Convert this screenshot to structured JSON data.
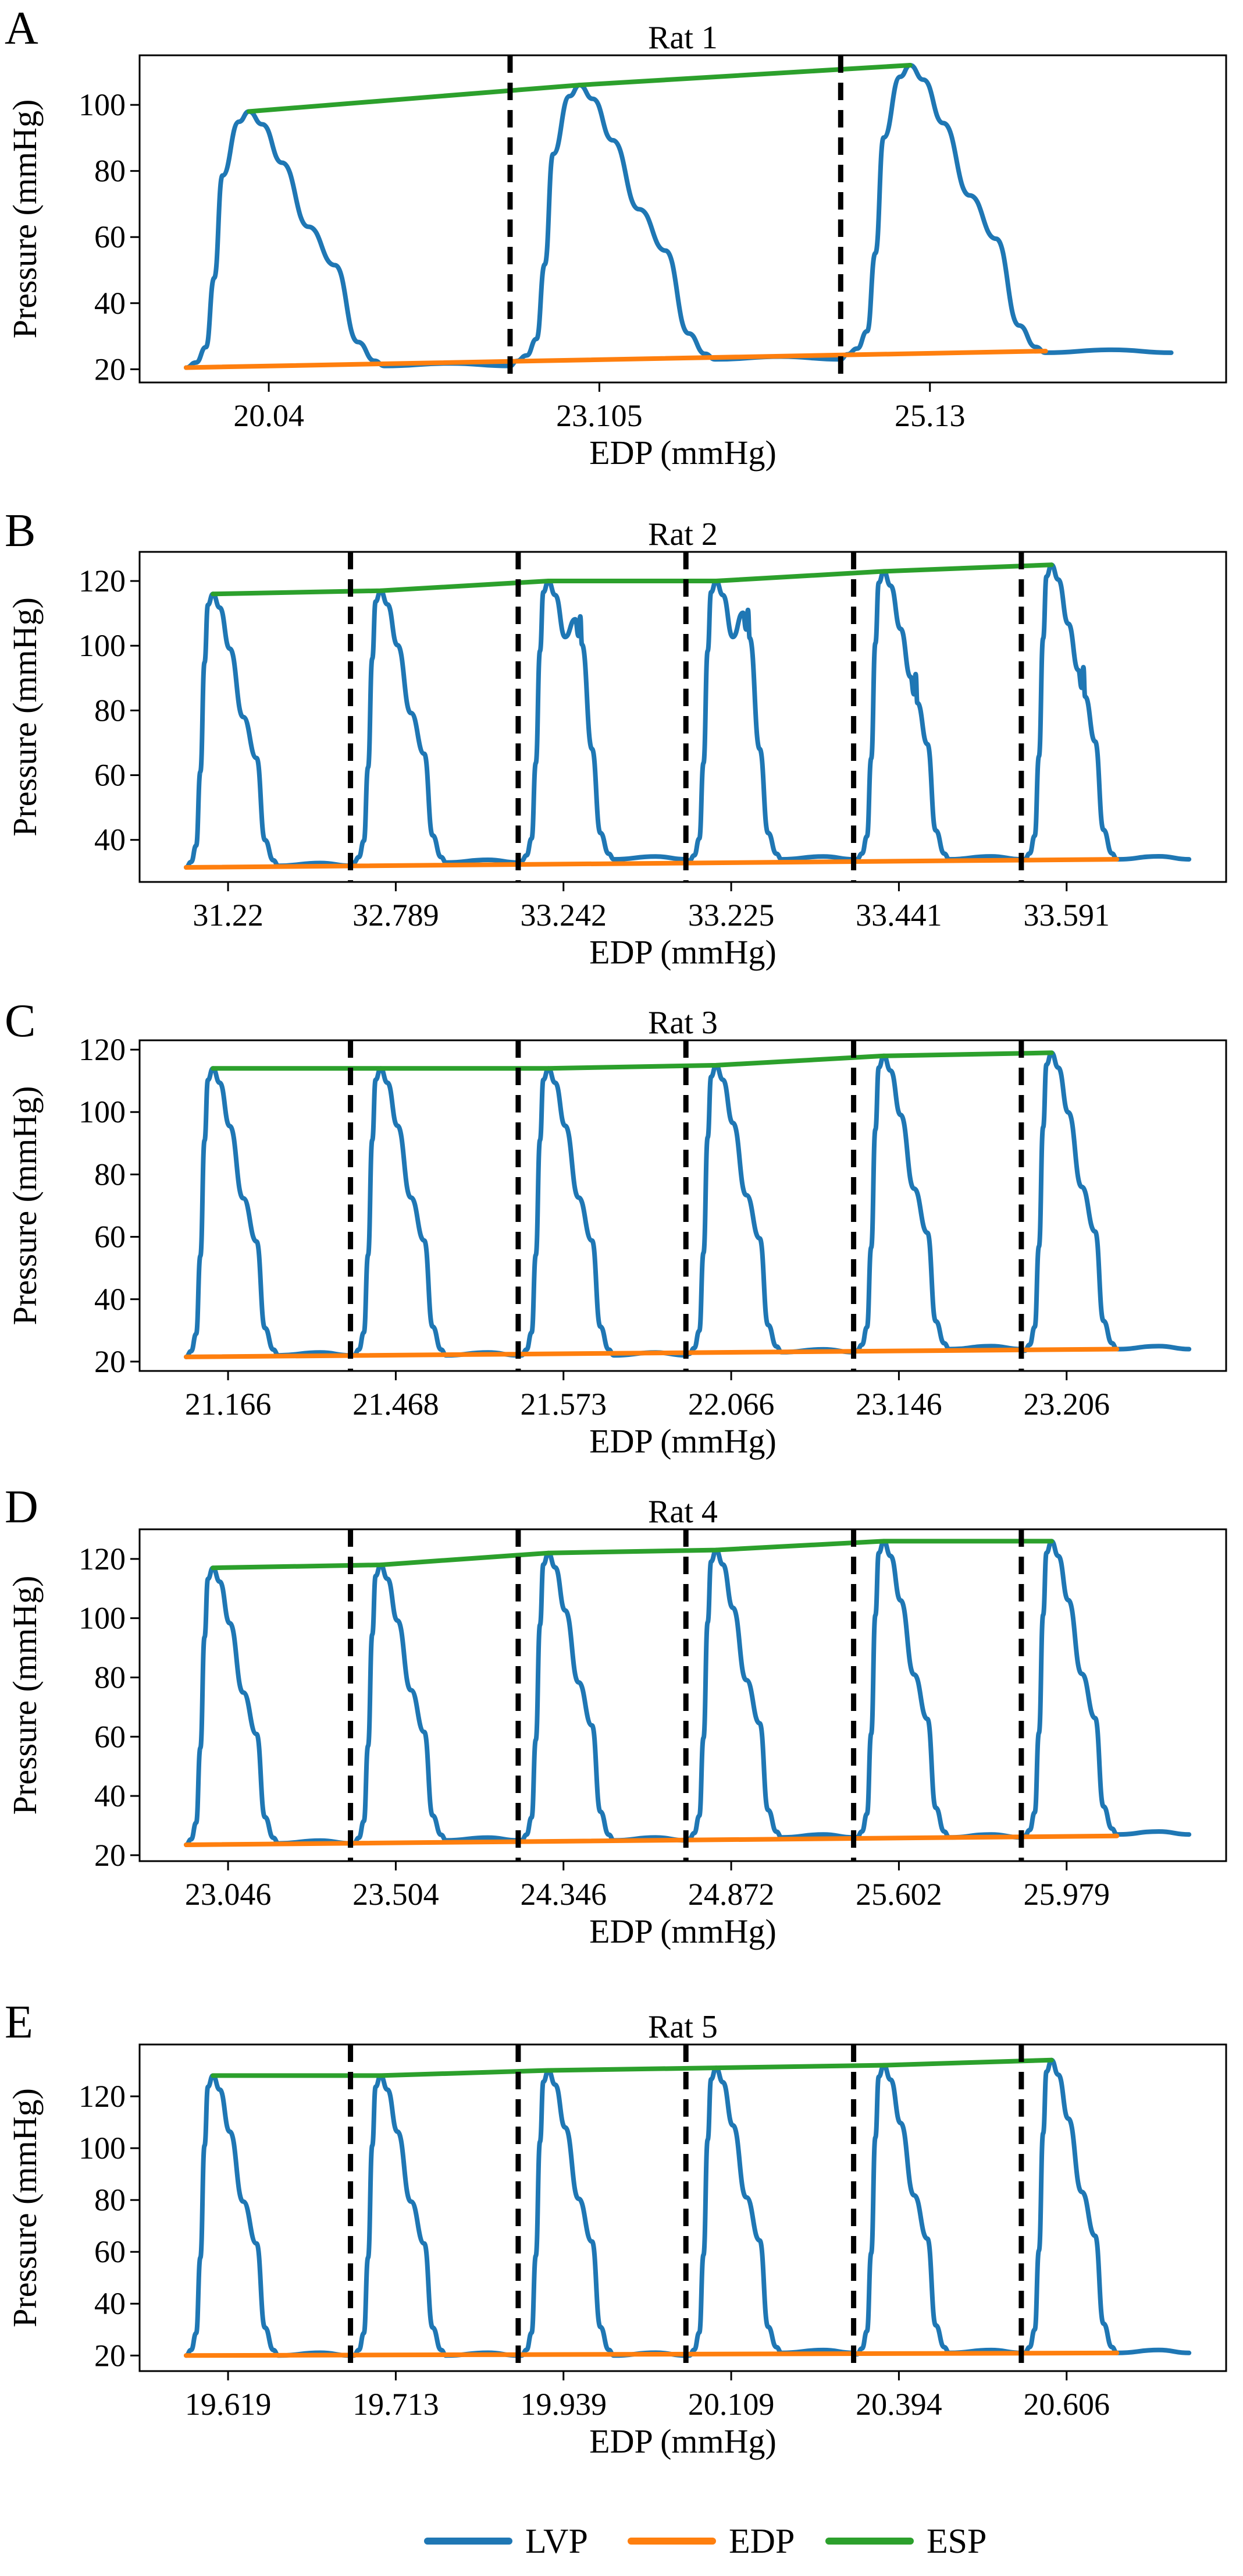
{
  "figure_title": "",
  "colors": {
    "lvp": "#1f77b4",
    "edp": "#ff7f0e",
    "esp": "#2ca02c",
    "divider": "#000000"
  },
  "legend": {
    "items": [
      {
        "label": "LVP",
        "color": "#1f77b4"
      },
      {
        "label": "EDP",
        "color": "#ff7f0e"
      },
      {
        "label": "ESP",
        "color": "#2ca02c"
      }
    ]
  },
  "chart_data": [
    {
      "type": "line",
      "panel": "A",
      "title": "Rat 1",
      "xlabel": "EDP (mmHg)",
      "ylabel": "Pressure (mmHg)",
      "ylim": [
        16,
        115
      ],
      "yticks": [
        20,
        40,
        60,
        80,
        100
      ],
      "categories": [
        "20.04",
        "23.105",
        "25.13"
      ],
      "beats": [
        {
          "edp_label": "20.04",
          "edp": 20.5,
          "esp": 98,
          "end": 21,
          "dicrotic": null
        },
        {
          "edp_label": "23.105",
          "edp": 22.5,
          "esp": 106,
          "end": 23,
          "dicrotic": null
        },
        {
          "edp_label": "25.13",
          "edp": 24.5,
          "esp": 112,
          "end": 25,
          "dicrotic": null
        }
      ],
      "edp_line": [
        20.5,
        25.5
      ],
      "esp_line": [
        98,
        112
      ]
    },
    {
      "type": "line",
      "panel": "B",
      "title": "Rat 2",
      "xlabel": "EDP (mmHg)",
      "ylabel": "Pressure (mmHg)",
      "ylim": [
        27,
        129
      ],
      "yticks": [
        40,
        60,
        80,
        100,
        120
      ],
      "categories": [
        "31.22",
        "32.789",
        "33.242",
        "33.225",
        "33.441",
        "33.591"
      ],
      "beats": [
        {
          "edp_label": "31.22",
          "edp": 31.5,
          "esp": 116,
          "end": 32,
          "dicrotic": null
        },
        {
          "edp_label": "32.789",
          "edp": 33,
          "esp": 117,
          "end": 33,
          "dicrotic": null
        },
        {
          "edp_label": "33.242",
          "edp": 33.5,
          "esp": 120,
          "end": 34,
          "dicrotic": 103
        },
        {
          "edp_label": "33.225",
          "edp": 33.5,
          "esp": 120,
          "end": 34,
          "dicrotic": 105
        },
        {
          "edp_label": "33.441",
          "edp": 34,
          "esp": 123,
          "end": 34,
          "dicrotic": 85
        },
        {
          "edp_label": "33.591",
          "edp": 34,
          "esp": 125,
          "end": 34,
          "dicrotic": 87
        }
      ],
      "edp_line": [
        31.5,
        34
      ],
      "esp_line": [
        116,
        125
      ]
    },
    {
      "type": "line",
      "panel": "C",
      "title": "Rat 3",
      "xlabel": "EDP (mmHg)",
      "ylabel": "Pressure (mmHg)",
      "ylim": [
        17,
        123
      ],
      "yticks": [
        20,
        40,
        60,
        80,
        100,
        120
      ],
      "categories": [
        "21.166",
        "21.468",
        "21.573",
        "22.066",
        "23.146",
        "23.206"
      ],
      "beats": [
        {
          "edp_label": "21.166",
          "edp": 21.5,
          "esp": 114,
          "end": 22,
          "dicrotic": null
        },
        {
          "edp_label": "21.468",
          "edp": 22,
          "esp": 114,
          "end": 22,
          "dicrotic": null
        },
        {
          "edp_label": "21.573",
          "edp": 22,
          "esp": 114,
          "end": 22,
          "dicrotic": null
        },
        {
          "edp_label": "22.066",
          "edp": 22.5,
          "esp": 115,
          "end": 23,
          "dicrotic": null
        },
        {
          "edp_label": "23.146",
          "edp": 23.5,
          "esp": 118,
          "end": 24,
          "dicrotic": null
        },
        {
          "edp_label": "23.206",
          "edp": 23.5,
          "esp": 119,
          "end": 24,
          "dicrotic": null
        }
      ],
      "edp_line": [
        21.5,
        24
      ],
      "esp_line": [
        114,
        119
      ]
    },
    {
      "type": "line",
      "panel": "D",
      "title": "Rat 4",
      "xlabel": "EDP (mmHg)",
      "ylabel": "Pressure (mmHg)",
      "ylim": [
        18,
        130
      ],
      "yticks": [
        20,
        40,
        60,
        80,
        100,
        120
      ],
      "categories": [
        "23.046",
        "23.504",
        "24.346",
        "24.872",
        "25.602",
        "25.979"
      ],
      "beats": [
        {
          "edp_label": "23.046",
          "edp": 23.5,
          "esp": 117,
          "end": 24,
          "dicrotic": null
        },
        {
          "edp_label": "23.504",
          "edp": 24,
          "esp": 118,
          "end": 25,
          "dicrotic": null
        },
        {
          "edp_label": "24.346",
          "edp": 25,
          "esp": 122,
          "end": 25,
          "dicrotic": null
        },
        {
          "edp_label": "24.872",
          "edp": 25.5,
          "esp": 123,
          "end": 26,
          "dicrotic": null
        },
        {
          "edp_label": "25.602",
          "edp": 26,
          "esp": 126,
          "end": 26,
          "dicrotic": null
        },
        {
          "edp_label": "25.979",
          "edp": 26.5,
          "esp": 126,
          "end": 27,
          "dicrotic": null
        }
      ],
      "edp_line": [
        23.5,
        26.5
      ],
      "esp_line": [
        117,
        126
      ]
    },
    {
      "type": "line",
      "panel": "E",
      "title": "Rat 5",
      "xlabel": "EDP (mmHg)",
      "ylabel": "Pressure (mmHg)",
      "ylim": [
        14,
        140
      ],
      "yticks": [
        20,
        40,
        60,
        80,
        100,
        120
      ],
      "categories": [
        "19.619",
        "19.713",
        "19.939",
        "20.109",
        "20.394",
        "20.606"
      ],
      "beats": [
        {
          "edp_label": "19.619",
          "edp": 20,
          "esp": 128,
          "end": 20,
          "dicrotic": null
        },
        {
          "edp_label": "19.713",
          "edp": 20,
          "esp": 128,
          "end": 20,
          "dicrotic": null
        },
        {
          "edp_label": "19.939",
          "edp": 20,
          "esp": 130,
          "end": 20,
          "dicrotic": null
        },
        {
          "edp_label": "20.109",
          "edp": 20,
          "esp": 131,
          "end": 21,
          "dicrotic": null
        },
        {
          "edp_label": "20.394",
          "edp": 20.5,
          "esp": 132,
          "end": 21,
          "dicrotic": null
        },
        {
          "edp_label": "20.606",
          "edp": 21,
          "esp": 134,
          "end": 21,
          "dicrotic": null
        }
      ],
      "edp_line": [
        20,
        21
      ],
      "esp_line": [
        128,
        134
      ]
    }
  ]
}
